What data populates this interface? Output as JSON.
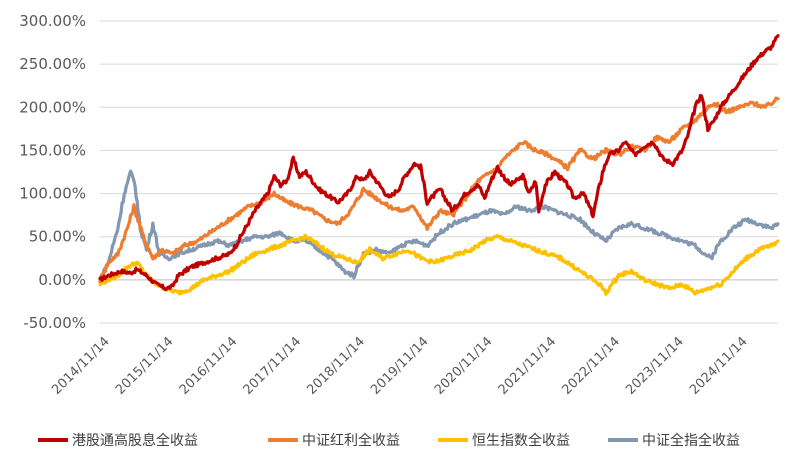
{
  "chart_data": {
    "type": "line",
    "title": "",
    "xlabel": "",
    "ylabel": "",
    "y_unit": "%",
    "ylim": [
      -50,
      300
    ],
    "y_ticks": [
      -50,
      0,
      50,
      100,
      150,
      200,
      250,
      300
    ],
    "y_tick_labels": [
      "-50.00%",
      "0.00%",
      "50.00%",
      "100.00%",
      "150.00%",
      "200.00%",
      "250.00%",
      "300.00%"
    ],
    "x_tick_labels": [
      "2014/11/14",
      "2015/11/14",
      "2016/11/14",
      "2017/11/14",
      "2018/11/14",
      "2019/11/14",
      "2020/11/14",
      "2021/11/14",
      "2022/11/14",
      "2023/11/14",
      "2024/11/14"
    ],
    "xlim": [
      2014.87,
      2025.5
    ],
    "grid": "horizontal",
    "legend_position": "bottom",
    "series": [
      {
        "name": "港股通高股息全收益",
        "color": "#c00000",
        "x": [
          2014.87,
          2015.0,
          2015.2,
          2015.35,
          2015.45,
          2015.6,
          2015.75,
          2015.9,
          2016.0,
          2016.1,
          2016.3,
          2016.5,
          2016.7,
          2016.9,
          2017.0,
          2017.15,
          2017.3,
          2017.5,
          2017.6,
          2017.7,
          2017.8,
          2017.9,
          2018.0,
          2018.1,
          2018.3,
          2018.5,
          2018.6,
          2018.75,
          2018.9,
          2019.0,
          2019.1,
          2019.25,
          2019.4,
          2019.55,
          2019.65,
          2019.8,
          2019.9,
          2020.0,
          2020.2,
          2020.4,
          2020.6,
          2020.8,
          2020.9,
          2021.0,
          2021.1,
          2021.3,
          2021.5,
          2021.6,
          2021.7,
          2021.75,
          2021.85,
          2022.0,
          2022.2,
          2022.3,
          2022.45,
          2022.6,
          2022.75,
          2022.85,
          2023.0,
          2023.1,
          2023.25,
          2023.4,
          2023.55,
          2023.7,
          2023.85,
          2024.0,
          2024.1,
          2024.2,
          2024.3,
          2024.4,
          2024.5,
          2024.6,
          2024.7,
          2024.8,
          2024.9,
          2025.0,
          2025.15,
          2025.3,
          2025.4,
          2025.5
        ],
        "values": [
          0,
          5,
          10,
          8,
          12,
          5,
          -5,
          -10,
          -8,
          5,
          15,
          20,
          25,
          30,
          40,
          60,
          80,
          100,
          120,
          110,
          115,
          140,
          120,
          125,
          105,
          95,
          90,
          100,
          120,
          115,
          125,
          110,
          95,
          105,
          120,
          135,
          130,
          90,
          105,
          80,
          100,
          110,
          95,
          115,
          130,
          110,
          120,
          100,
          115,
          80,
          110,
          125,
          110,
          95,
          100,
          75,
          125,
          145,
          150,
          160,
          145,
          155,
          160,
          140,
          135,
          150,
          170,
          200,
          215,
          175,
          185,
          200,
          210,
          220,
          230,
          240,
          255,
          265,
          270,
          283
        ]
      },
      {
        "name": "中证红利全收益",
        "color": "#ed7d31",
        "x": [
          2014.87,
          2015.0,
          2015.15,
          2015.3,
          2015.4,
          2015.55,
          2015.7,
          2015.85,
          2016.0,
          2016.2,
          2016.4,
          2016.6,
          2016.8,
          2017.0,
          2017.2,
          2017.4,
          2017.6,
          2017.8,
          2018.0,
          2018.2,
          2018.4,
          2018.6,
          2018.8,
          2019.0,
          2019.2,
          2019.4,
          2019.6,
          2019.8,
          2020.0,
          2020.2,
          2020.4,
          2020.6,
          2020.8,
          2021.0,
          2021.1,
          2021.2,
          2021.35,
          2021.5,
          2021.7,
          2021.9,
          2022.0,
          2022.2,
          2022.4,
          2022.6,
          2022.8,
          2023.0,
          2023.2,
          2023.4,
          2023.6,
          2023.8,
          2024.0,
          2024.2,
          2024.4,
          2024.5,
          2024.7,
          2024.9,
          2025.1,
          2025.3,
          2025.5
        ],
        "values": [
          0,
          20,
          30,
          60,
          85,
          50,
          25,
          35,
          30,
          40,
          45,
          55,
          65,
          75,
          85,
          90,
          100,
          90,
          85,
          80,
          70,
          65,
          80,
          105,
          95,
          85,
          80,
          85,
          60,
          80,
          75,
          95,
          115,
          125,
          130,
          140,
          150,
          160,
          150,
          145,
          140,
          130,
          150,
          140,
          150,
          145,
          155,
          150,
          165,
          160,
          175,
          185,
          200,
          205,
          195,
          200,
          205,
          200,
          210
        ]
      },
      {
        "name": "恒生指数全收益",
        "color": "#ffc000",
        "x": [
          2014.87,
          2015.0,
          2015.15,
          2015.3,
          2015.45,
          2015.6,
          2015.75,
          2015.9,
          2016.1,
          2016.3,
          2016.5,
          2016.7,
          2016.9,
          2017.1,
          2017.3,
          2017.5,
          2017.7,
          2017.9,
          2018.1,
          2018.3,
          2018.5,
          2018.7,
          2018.9,
          2019.1,
          2019.3,
          2019.5,
          2019.7,
          2019.9,
          2020.1,
          2020.3,
          2020.5,
          2020.7,
          2020.9,
          2021.1,
          2021.3,
          2021.5,
          2021.7,
          2021.9,
          2022.1,
          2022.3,
          2022.5,
          2022.7,
          2022.8,
          2023.0,
          2023.2,
          2023.4,
          2023.6,
          2023.8,
          2024.0,
          2024.2,
          2024.4,
          2024.6,
          2024.8,
          2025.0,
          2025.2,
          2025.4,
          2025.5
        ],
        "values": [
          -5,
          0,
          5,
          15,
          20,
          5,
          -5,
          -10,
          -15,
          -10,
          0,
          5,
          10,
          20,
          30,
          35,
          40,
          45,
          50,
          40,
          30,
          25,
          20,
          35,
          25,
          30,
          35,
          25,
          20,
          25,
          30,
          35,
          45,
          50,
          45,
          40,
          35,
          30,
          25,
          15,
          5,
          -5,
          -15,
          5,
          10,
          0,
          -5,
          -10,
          -5,
          -15,
          -10,
          -5,
          10,
          25,
          35,
          40,
          45
        ]
      },
      {
        "name": "中证全指全收益",
        "color": "#8497b0",
        "x": [
          2014.87,
          2015.0,
          2015.15,
          2015.25,
          2015.35,
          2015.42,
          2015.5,
          2015.6,
          2015.7,
          2015.8,
          2015.95,
          2016.1,
          2016.3,
          2016.5,
          2016.7,
          2016.9,
          2017.1,
          2017.3,
          2017.5,
          2017.7,
          2017.9,
          2018.1,
          2018.3,
          2018.5,
          2018.7,
          2018.85,
          2019.0,
          2019.2,
          2019.4,
          2019.6,
          2019.8,
          2020.0,
          2020.2,
          2020.4,
          2020.6,
          2020.8,
          2021.0,
          2021.2,
          2021.4,
          2021.6,
          2021.8,
          2022.0,
          2022.2,
          2022.4,
          2022.6,
          2022.8,
          2023.0,
          2023.2,
          2023.4,
          2023.6,
          2023.8,
          2024.0,
          2024.2,
          2024.35,
          2024.45,
          2024.6,
          2024.8,
          2025.0,
          2025.2,
          2025.4,
          2025.5
        ],
        "values": [
          0,
          20,
          60,
          100,
          125,
          110,
          60,
          35,
          65,
          30,
          25,
          30,
          35,
          40,
          45,
          40,
          45,
          50,
          50,
          55,
          45,
          45,
          35,
          25,
          10,
          5,
          30,
          35,
          30,
          40,
          45,
          40,
          55,
          65,
          70,
          75,
          80,
          75,
          85,
          80,
          85,
          80,
          75,
          70,
          55,
          45,
          60,
          65,
          60,
          55,
          50,
          45,
          40,
          30,
          25,
          45,
          60,
          70,
          65,
          60,
          65
        ]
      }
    ]
  }
}
